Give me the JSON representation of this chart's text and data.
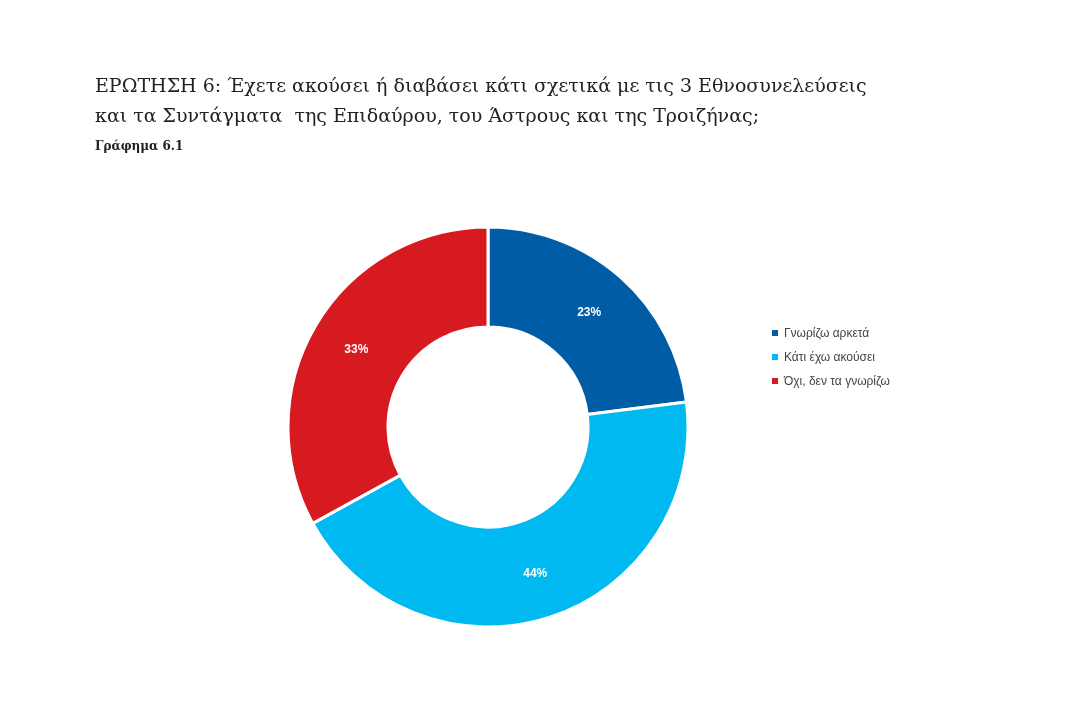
{
  "chart_data": {
    "type": "donut",
    "title": "ΕΡΩΤΗΣΗ 6: Έχετε ακούσει ή διαβάσει κάτι σχετικά με τις 3 Εθνοσυνελεύσεις\nκαι τα Συντάγματα  της Επιδαύρου, του Άστρους και της Τροιζήνας;",
    "subtitle": "Γράφημα 6.1",
    "categories": [
      "Γνωρίζω αρκετά",
      "Κάτι έχω ακούσει",
      "Όχι, δεν τα γνωρίζω"
    ],
    "values": [
      23,
      44,
      33
    ],
    "colors": [
      "#005ca5",
      "#00b9f0",
      "#d71920"
    ],
    "value_labels": [
      "23%",
      "44%",
      "33%"
    ],
    "legend": "right"
  }
}
